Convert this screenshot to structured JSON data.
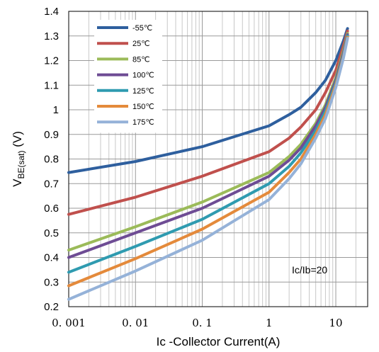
{
  "chart_data": {
    "type": "line",
    "xlabel": "Ic -Collector Current(A)",
    "ylabel_main": "V",
    "ylabel_sub": "BE(sat)",
    "ylabel_unit": " (V)",
    "x_scale": "log",
    "xlim": [
      0.001,
      30
    ],
    "ylim": [
      0.2,
      1.4
    ],
    "x_ticks": [
      0.001,
      0.01,
      0.1,
      1,
      10
    ],
    "x_tick_labels": [
      "0. 001",
      "0. 01",
      "0. 1",
      "1",
      "10"
    ],
    "y_ticks": [
      0.2,
      0.3,
      0.4,
      0.5,
      0.6,
      0.7,
      0.8,
      0.9,
      1.0,
      1.1,
      1.2,
      1.3,
      1.4
    ],
    "y_tick_labels": [
      "0.2",
      "0.3",
      "0.4",
      "0.5",
      "0.6",
      "0.7",
      "0.8",
      "0.9",
      "1",
      "1.1",
      "1.2",
      "1.3",
      "1.4"
    ],
    "grid": true,
    "legend_position": "top-left",
    "annotation": "Ic/Ib=20",
    "series": [
      {
        "name": "-55℃",
        "color": "#2e5f9e",
        "x": [
          0.001,
          0.01,
          0.1,
          1,
          2,
          3,
          5,
          7,
          10,
          13,
          15
        ],
        "y": [
          0.745,
          0.79,
          0.85,
          0.935,
          0.98,
          1.01,
          1.07,
          1.12,
          1.2,
          1.28,
          1.33
        ]
      },
      {
        "name": "25℃",
        "color": "#c0504d",
        "x": [
          0.001,
          0.01,
          0.1,
          1,
          2,
          3,
          5,
          7,
          10,
          13,
          15
        ],
        "y": [
          0.575,
          0.645,
          0.73,
          0.83,
          0.885,
          0.93,
          1.0,
          1.07,
          1.16,
          1.26,
          1.32
        ]
      },
      {
        "name": "85℃",
        "color": "#9bbb59",
        "x": [
          0.001,
          0.01,
          0.1,
          1,
          2,
          3,
          5,
          7,
          10,
          13,
          15
        ],
        "y": [
          0.43,
          0.525,
          0.625,
          0.745,
          0.81,
          0.86,
          0.945,
          1.02,
          1.13,
          1.24,
          1.31
        ]
      },
      {
        "name": "100℃",
        "color": "#6e4c94",
        "x": [
          0.001,
          0.01,
          0.1,
          1,
          2,
          3,
          5,
          7,
          10,
          13,
          15
        ],
        "y": [
          0.4,
          0.5,
          0.6,
          0.73,
          0.795,
          0.845,
          0.935,
          1.01,
          1.12,
          1.23,
          1.305
        ]
      },
      {
        "name": "125℃",
        "color": "#2f9bb0",
        "x": [
          0.001,
          0.01,
          0.1,
          1,
          2,
          3,
          5,
          7,
          10,
          13,
          15
        ],
        "y": [
          0.34,
          0.445,
          0.555,
          0.7,
          0.77,
          0.825,
          0.915,
          0.995,
          1.11,
          1.22,
          1.3
        ]
      },
      {
        "name": "150℃",
        "color": "#e48a3b",
        "x": [
          0.001,
          0.01,
          0.1,
          1,
          2,
          3,
          5,
          7,
          10,
          13,
          15
        ],
        "y": [
          0.285,
          0.395,
          0.515,
          0.665,
          0.745,
          0.8,
          0.9,
          0.98,
          1.1,
          1.215,
          1.295
        ]
      },
      {
        "name": "175℃",
        "color": "#95b2d8",
        "x": [
          0.001,
          0.01,
          0.1,
          1,
          2,
          3,
          5,
          7,
          10,
          13,
          15
        ],
        "y": [
          0.23,
          0.345,
          0.47,
          0.635,
          0.72,
          0.78,
          0.885,
          0.965,
          1.09,
          1.21,
          1.29
        ]
      }
    ]
  }
}
